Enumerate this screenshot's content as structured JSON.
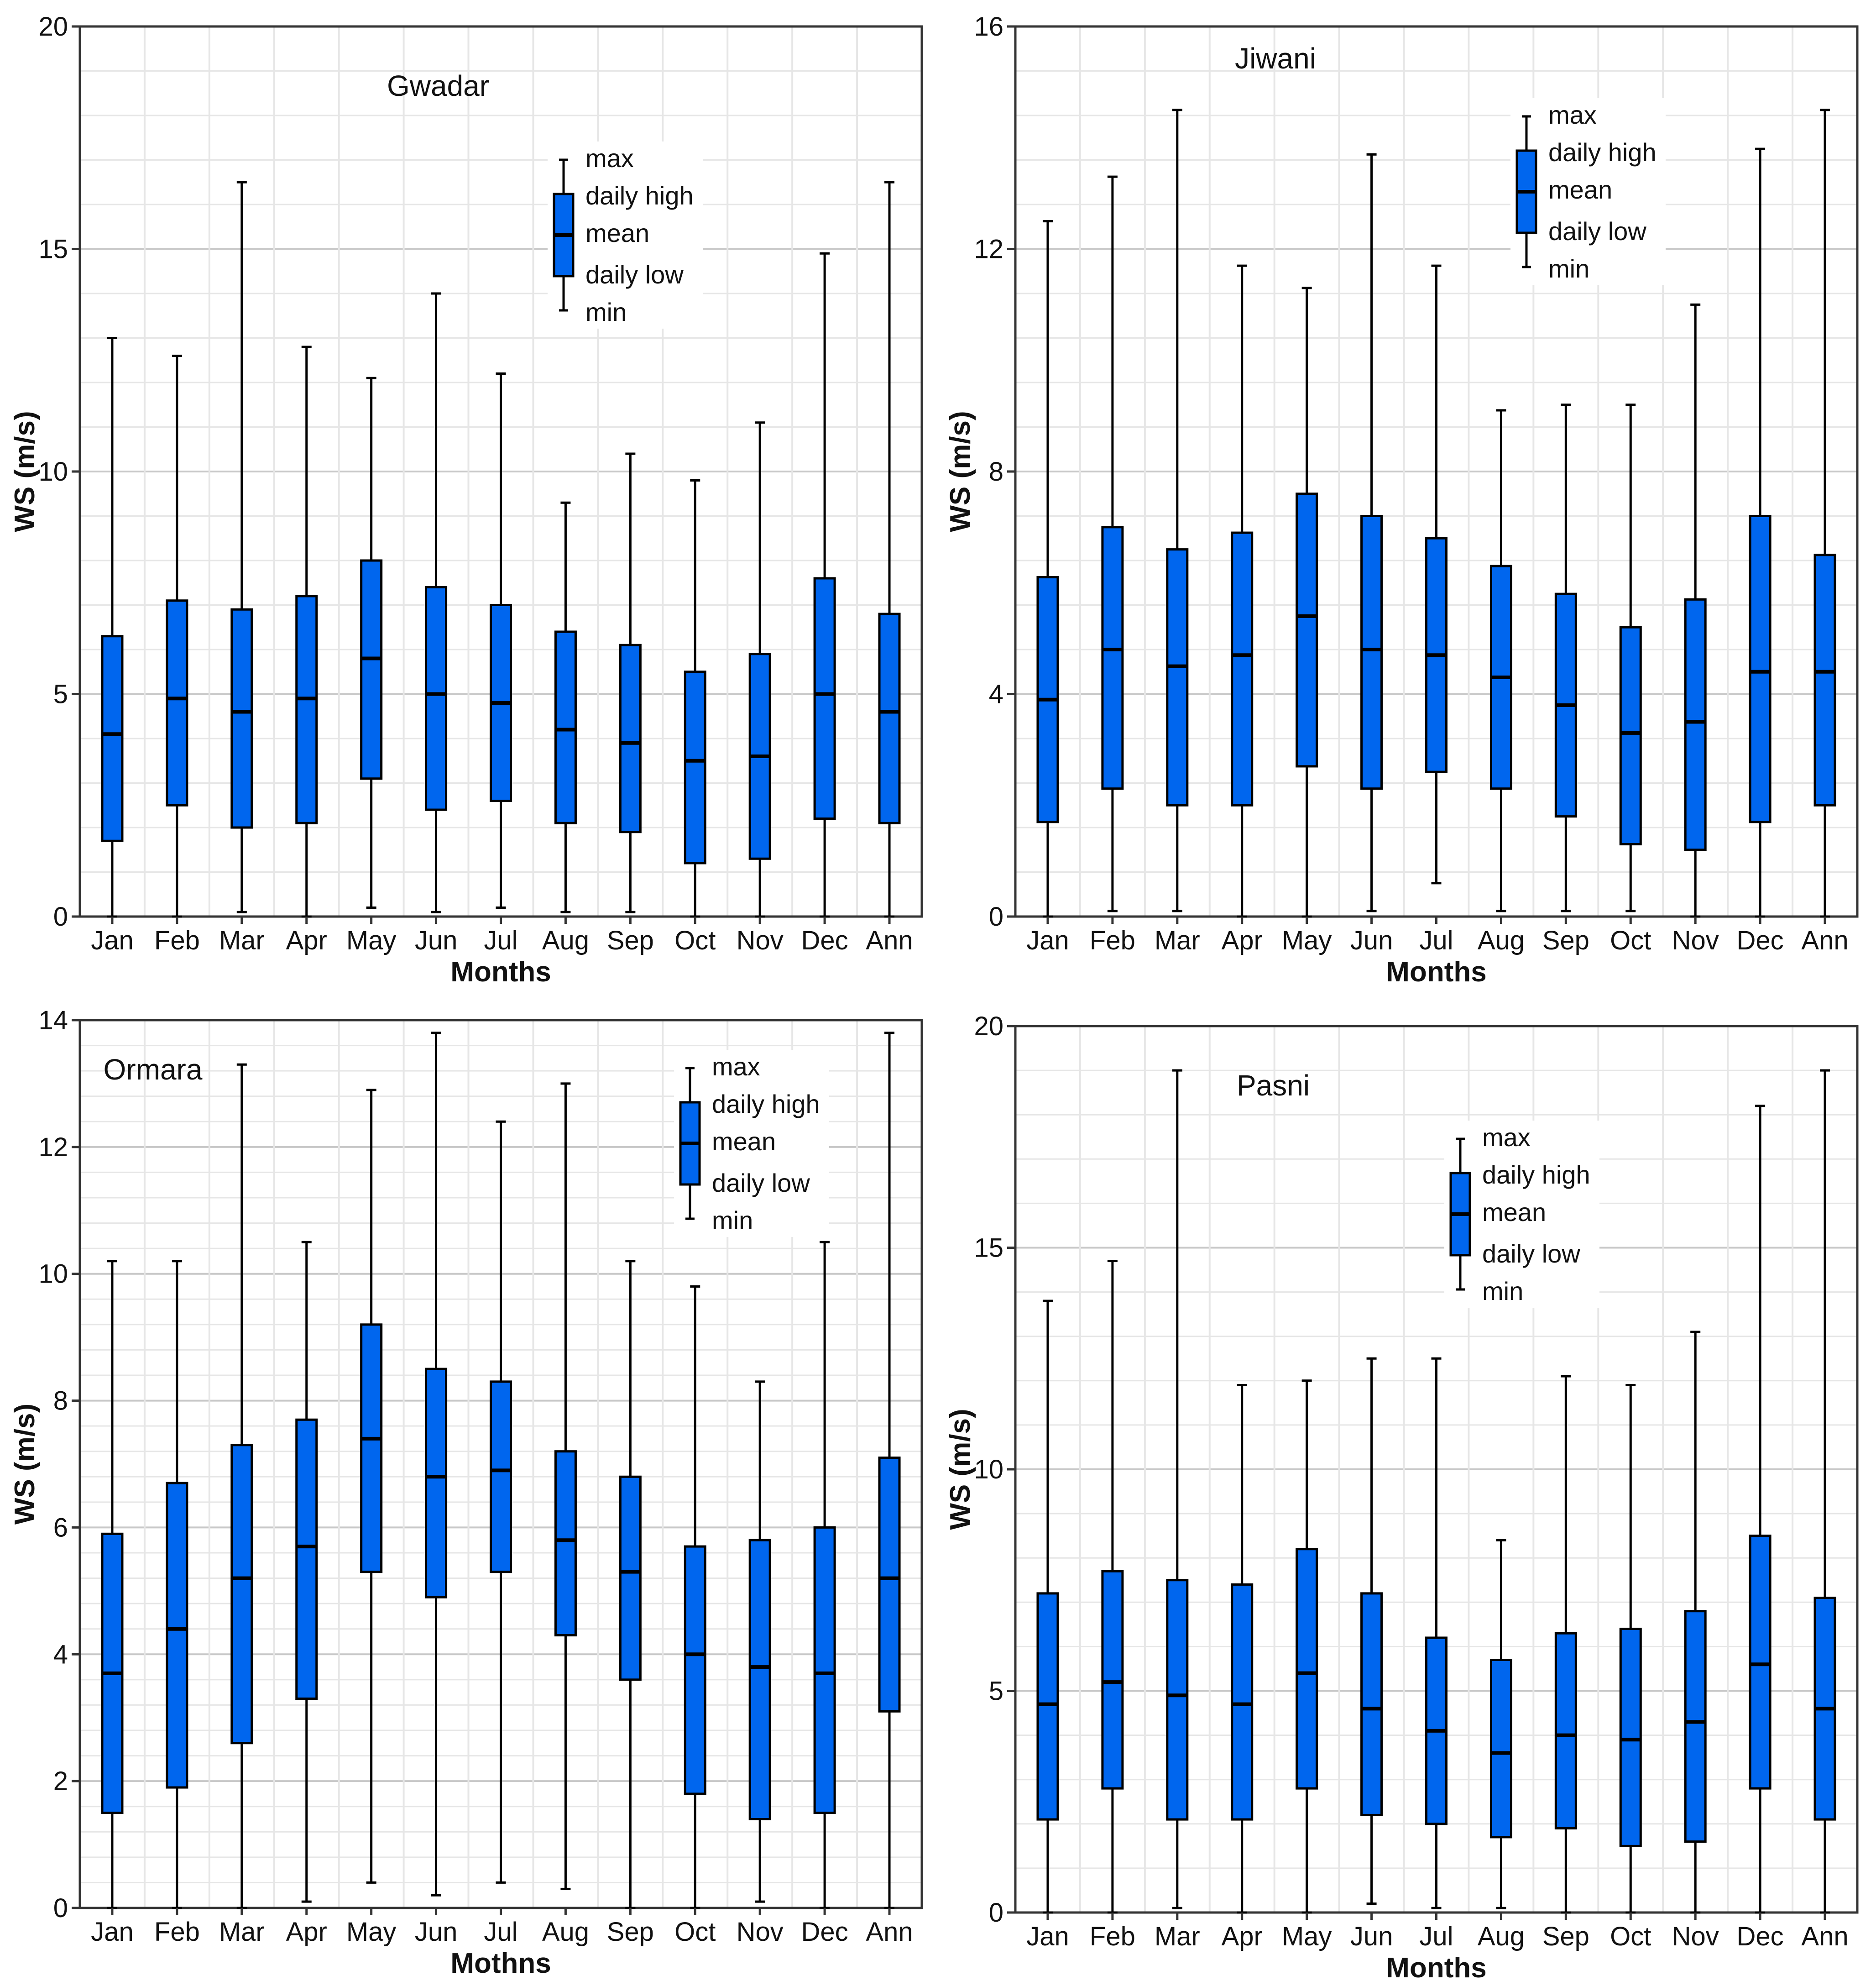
{
  "chart_data": [
    {
      "type": "boxplot",
      "title": "Gwadar",
      "xlabel": "Months",
      "ylabel": "WS (m/s)",
      "ylim": [
        0,
        20
      ],
      "yticks": [
        0,
        5,
        10,
        15,
        20
      ],
      "grid": true,
      "legend_position": "top-right",
      "legend": [
        "max",
        "daily high",
        "mean",
        "daily low",
        "min"
      ],
      "categories": [
        "Jan",
        "Feb",
        "Mar",
        "Apr",
        "May",
        "Jun",
        "Jul",
        "Aug",
        "Sep",
        "Oct",
        "Nov",
        "Dec",
        "Ann"
      ],
      "max": [
        13.0,
        12.6,
        16.5,
        12.8,
        12.1,
        14.0,
        12.2,
        9.3,
        10.4,
        9.8,
        11.1,
        14.9,
        16.5
      ],
      "daily_high": [
        6.3,
        7.1,
        6.9,
        7.2,
        8.0,
        7.4,
        7.0,
        6.4,
        6.1,
        5.5,
        5.9,
        7.6,
        6.8
      ],
      "mean": [
        4.1,
        4.9,
        4.6,
        4.9,
        5.8,
        5.0,
        4.8,
        4.2,
        3.9,
        3.5,
        3.6,
        5.0,
        4.6
      ],
      "daily_low": [
        1.7,
        2.5,
        2.0,
        2.1,
        3.1,
        2.4,
        2.6,
        2.1,
        1.9,
        1.2,
        1.3,
        2.2,
        2.1
      ],
      "min": [
        0.0,
        0.0,
        0.1,
        0.0,
        0.2,
        0.1,
        0.2,
        0.1,
        0.1,
        0.0,
        0.0,
        0.0,
        0.0
      ]
    },
    {
      "type": "boxplot",
      "title": "Jiwani",
      "xlabel": "Months",
      "ylabel": "WS (m/s)",
      "ylim": [
        0,
        16
      ],
      "yticks": [
        0,
        4,
        8,
        12,
        16
      ],
      "grid": true,
      "legend_position": "top-right",
      "legend": [
        "max",
        "daily high",
        "mean",
        "daily low",
        "min"
      ],
      "categories": [
        "Jan",
        "Feb",
        "Mar",
        "Apr",
        "May",
        "Jun",
        "Jul",
        "Aug",
        "Sep",
        "Oct",
        "Nov",
        "Dec",
        "Ann"
      ],
      "max": [
        12.5,
        13.3,
        14.5,
        11.7,
        11.3,
        13.7,
        11.7,
        9.1,
        9.2,
        9.2,
        11.0,
        13.8,
        14.5
      ],
      "daily_high": [
        6.1,
        7.0,
        6.6,
        6.9,
        7.6,
        7.2,
        6.8,
        6.3,
        5.8,
        5.2,
        5.7,
        7.2,
        6.5
      ],
      "mean": [
        3.9,
        4.8,
        4.5,
        4.7,
        5.4,
        4.8,
        4.7,
        4.3,
        3.8,
        3.3,
        3.5,
        4.4,
        4.4
      ],
      "daily_low": [
        1.7,
        2.3,
        2.0,
        2.0,
        2.7,
        2.3,
        2.6,
        2.3,
        1.8,
        1.3,
        1.2,
        1.7,
        2.0
      ],
      "min": [
        0.0,
        0.1,
        0.1,
        0.0,
        0.0,
        0.1,
        0.6,
        0.1,
        0.1,
        0.1,
        0.0,
        0.0,
        0.0
      ]
    },
    {
      "type": "boxplot",
      "title": "Ormara",
      "xlabel": "Mothns",
      "ylabel": "WS (m/s)",
      "ylim": [
        0,
        14
      ],
      "yticks": [
        0,
        2,
        4,
        6,
        8,
        10,
        12,
        14
      ],
      "grid": true,
      "legend_position": "top-right",
      "legend": [
        "max",
        "daily high",
        "mean",
        "daily low",
        "min"
      ],
      "categories": [
        "Jan",
        "Feb",
        "Mar",
        "Apr",
        "May",
        "Jun",
        "Jul",
        "Aug",
        "Sep",
        "Oct",
        "Nov",
        "Dec",
        "Ann"
      ],
      "max": [
        10.2,
        10.2,
        13.3,
        10.5,
        12.9,
        13.8,
        12.4,
        13.0,
        10.2,
        9.8,
        8.3,
        10.5,
        13.8
      ],
      "daily_high": [
        5.9,
        6.7,
        7.3,
        7.7,
        9.2,
        8.5,
        8.3,
        7.2,
        6.8,
        5.7,
        5.8,
        6.0,
        7.1
      ],
      "mean": [
        3.7,
        4.4,
        5.2,
        5.7,
        7.4,
        6.8,
        6.9,
        5.8,
        5.3,
        4.0,
        3.8,
        3.7,
        5.2
      ],
      "daily_low": [
        1.5,
        1.9,
        2.6,
        3.3,
        5.3,
        4.9,
        5.3,
        4.3,
        3.6,
        1.8,
        1.4,
        1.5,
        3.1
      ],
      "min": [
        0.0,
        0.0,
        0.0,
        0.1,
        0.4,
        0.2,
        0.4,
        0.3,
        0.0,
        0.0,
        0.1,
        0.0,
        0.0
      ]
    },
    {
      "type": "boxplot",
      "title": "Pasni",
      "xlabel": "Months",
      "ylabel": "WS (m/s)",
      "ylim": [
        0,
        20
      ],
      "yticks": [
        0,
        5,
        10,
        15,
        20
      ],
      "grid": true,
      "legend_position": "top-right",
      "legend": [
        "max",
        "daily high",
        "mean",
        "daily low",
        "min"
      ],
      "categories": [
        "Jan",
        "Feb",
        "Mar",
        "Apr",
        "May",
        "Jun",
        "Jul",
        "Aug",
        "Sep",
        "Oct",
        "Nov",
        "Dec",
        "Ann"
      ],
      "max": [
        13.8,
        14.7,
        19.0,
        11.9,
        12.0,
        12.5,
        12.5,
        8.4,
        12.1,
        11.9,
        13.1,
        18.2,
        19.0
      ],
      "daily_high": [
        7.2,
        7.7,
        7.5,
        7.4,
        8.2,
        7.2,
        6.2,
        5.7,
        6.3,
        6.4,
        6.8,
        8.5,
        7.1
      ],
      "mean": [
        4.7,
        5.2,
        4.9,
        4.7,
        5.4,
        4.6,
        4.1,
        3.6,
        4.0,
        3.9,
        4.3,
        5.6,
        4.6
      ],
      "daily_low": [
        2.1,
        2.8,
        2.1,
        2.1,
        2.8,
        2.2,
        2.0,
        1.7,
        1.9,
        1.5,
        1.6,
        2.8,
        2.1
      ],
      "min": [
        0.0,
        0.0,
        0.1,
        0.0,
        0.0,
        0.2,
        0.1,
        0.1,
        0.0,
        0.0,
        0.0,
        0.0,
        0.0
      ]
    }
  ],
  "colors": {
    "box_fill": "#0066ee",
    "stroke": "#000000",
    "grid_major": "#c8c8c8",
    "grid_minor": "#e6e6e6",
    "axis": "#333333"
  }
}
